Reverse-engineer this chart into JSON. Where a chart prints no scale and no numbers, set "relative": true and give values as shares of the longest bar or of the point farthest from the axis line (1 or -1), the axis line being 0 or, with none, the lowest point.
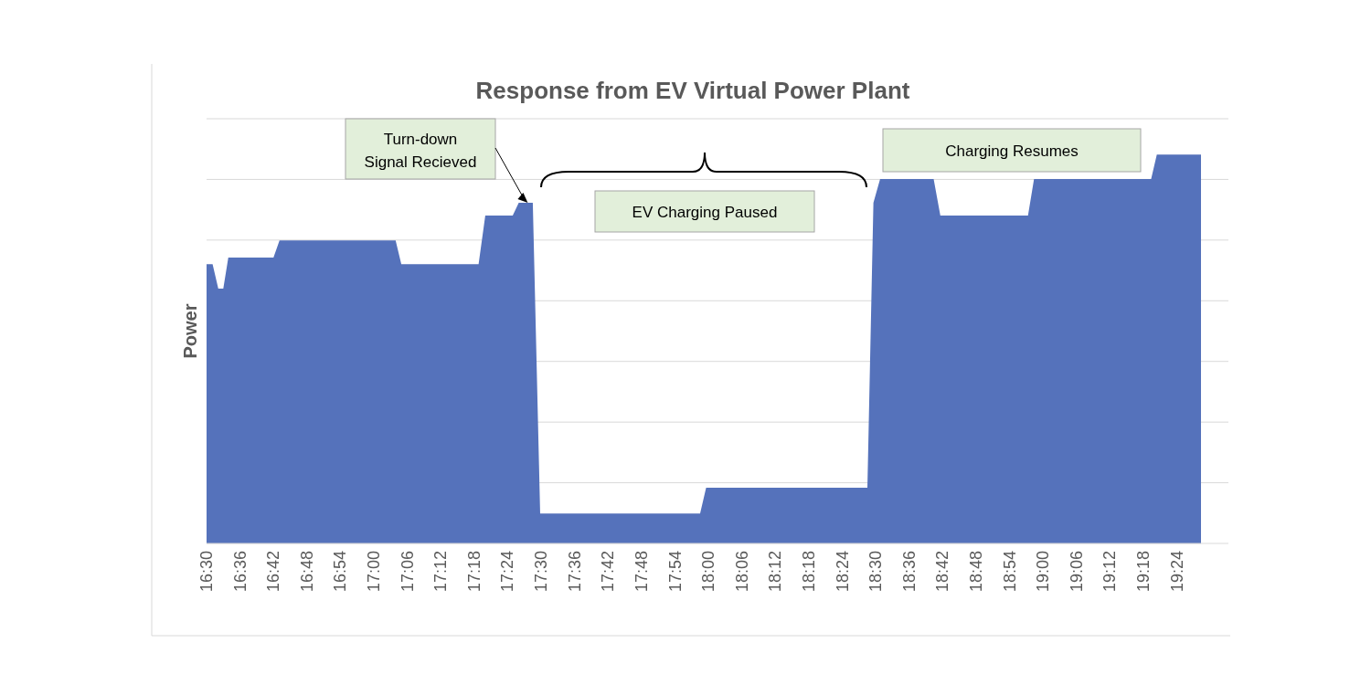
{
  "chart_data": {
    "type": "area",
    "title": "Response from EV Virtual Power Plant",
    "ylabel": "Power",
    "relative": true,
    "grid": "y",
    "color": "#5572bb",
    "x": [
      16.5,
      16.518,
      16.535,
      16.55,
      16.565,
      16.7,
      16.718,
      17.065,
      17.082,
      17.313,
      17.333,
      17.415,
      17.433,
      17.475,
      17.497,
      17.975,
      17.993,
      18.475,
      18.493,
      18.513,
      18.673,
      18.693,
      18.955,
      18.973,
      19.323,
      19.34,
      19.472
    ],
    "values": [
      0.718,
      0.718,
      0.655,
      0.655,
      0.735,
      0.735,
      0.779,
      0.779,
      0.718,
      0.718,
      0.843,
      0.843,
      0.876,
      0.876,
      0.077,
      0.077,
      0.143,
      0.143,
      0.876,
      0.937,
      0.937,
      0.843,
      0.843,
      0.937,
      0.937,
      1.0,
      1.0
    ],
    "xlim": [
      16.5,
      19.472
    ],
    "xticks": [
      {
        "value": 16.5,
        "label": "16:30"
      },
      {
        "value": 16.6,
        "label": "16:36"
      },
      {
        "value": 16.7,
        "label": "16:42"
      },
      {
        "value": 16.8,
        "label": "16:48"
      },
      {
        "value": 16.9,
        "label": "16:54"
      },
      {
        "value": 17.0,
        "label": "17:00"
      },
      {
        "value": 17.1,
        "label": "17:06"
      },
      {
        "value": 17.2,
        "label": "17:12"
      },
      {
        "value": 17.3,
        "label": "17:18"
      },
      {
        "value": 17.4,
        "label": "17:24"
      },
      {
        "value": 17.5,
        "label": "17:30"
      },
      {
        "value": 17.6,
        "label": "17:36"
      },
      {
        "value": 17.7,
        "label": "17:42"
      },
      {
        "value": 17.8,
        "label": "17:48"
      },
      {
        "value": 17.9,
        "label": "17:54"
      },
      {
        "value": 18.0,
        "label": "18:00"
      },
      {
        "value": 18.1,
        "label": "18:06"
      },
      {
        "value": 18.2,
        "label": "18:12"
      },
      {
        "value": 18.3,
        "label": "18:18"
      },
      {
        "value": 18.4,
        "label": "18:24"
      },
      {
        "value": 18.5,
        "label": "18:30"
      },
      {
        "value": 18.6,
        "label": "18:36"
      },
      {
        "value": 18.7,
        "label": "18:42"
      },
      {
        "value": 18.8,
        "label": "18:48"
      },
      {
        "value": 18.9,
        "label": "18:54"
      },
      {
        "value": 19.0,
        "label": "19:00"
      },
      {
        "value": 19.1,
        "label": "19:06"
      },
      {
        "value": 19.2,
        "label": "19:12"
      },
      {
        "value": 19.3,
        "label": "19:18"
      },
      {
        "value": 19.4,
        "label": "19:24"
      }
    ],
    "annotations": [
      {
        "text": "Turn-down\nSignal Recieved",
        "x": 17.46,
        "y": 0.876
      },
      "EV Charging Paused",
      "Charging Resumes"
    ]
  }
}
